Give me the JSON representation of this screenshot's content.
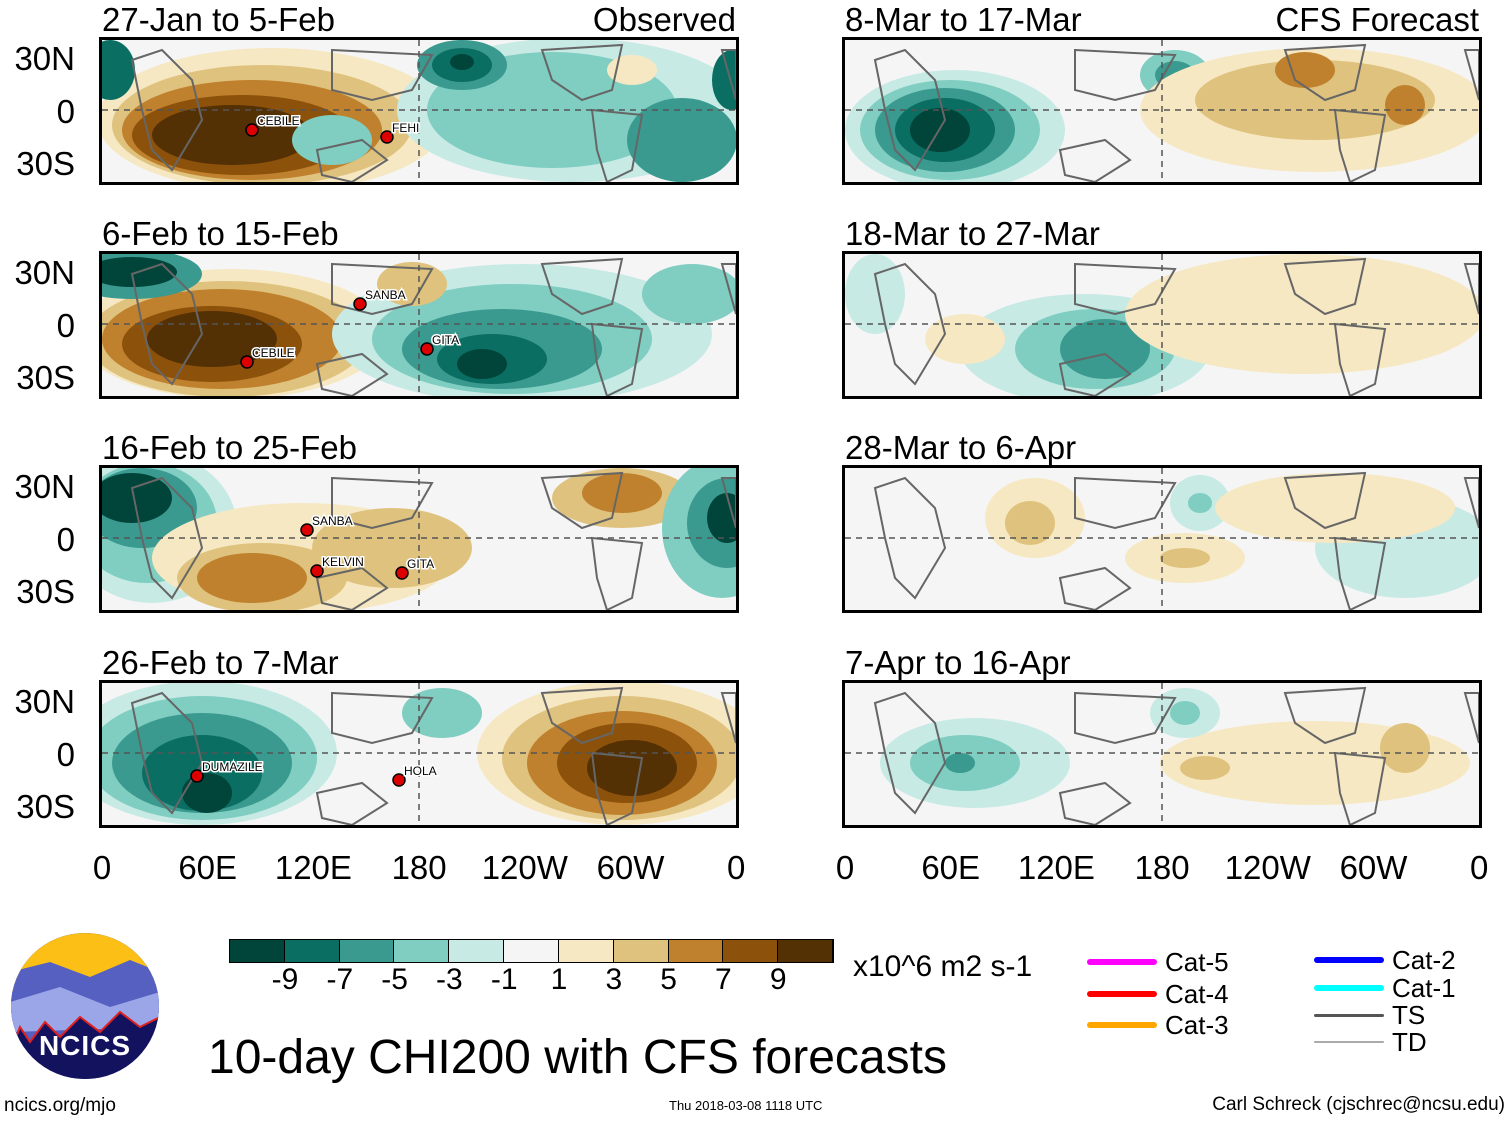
{
  "figure_title": "10-day CHI200 with CFS forecasts",
  "left_label": "Observed",
  "right_label": "CFS Forecast",
  "colors": [
    "#01443a",
    "#0a6e63",
    "#3a9a8f",
    "#80cdc1",
    "#c7eae5",
    "#f5f5f5",
    "#f6e8c3",
    "#dfc27d",
    "#bf812d",
    "#8c510a",
    "#543005"
  ],
  "chart_data": [
    {
      "type": "heatmap",
      "title": "27-Jan to 5-Feb",
      "group": "Observed",
      "storms": [
        "CEBILE",
        "FEHI"
      ]
    },
    {
      "type": "heatmap",
      "title": "6-Feb to 15-Feb",
      "group": "Observed",
      "storms": [
        "SANBA",
        "CEBILE",
        "GITA"
      ]
    },
    {
      "type": "heatmap",
      "title": "16-Feb to 25-Feb",
      "group": "Observed",
      "storms": [
        "SANBA",
        "KELVIN",
        "GITA"
      ]
    },
    {
      "type": "heatmap",
      "title": "26-Feb to 7-Mar",
      "group": "Observed",
      "storms": [
        "DUMAZILE",
        "HOLA"
      ]
    },
    {
      "type": "heatmap",
      "title": "8-Mar to 17-Mar",
      "group": "CFS Forecast",
      "storms": []
    },
    {
      "type": "heatmap",
      "title": "18-Mar to 27-Mar",
      "group": "CFS Forecast",
      "storms": []
    },
    {
      "type": "heatmap",
      "title": "28-Mar to 6-Apr",
      "group": "CFS Forecast",
      "storms": []
    },
    {
      "type": "heatmap",
      "title": "7-Apr to 16-Apr",
      "group": "CFS Forecast",
      "storms": []
    }
  ],
  "lat_ticks": [
    "30N",
    "0",
    "30S"
  ],
  "lon_ticks": [
    "0",
    "60E",
    "120E",
    "180",
    "120W",
    "60W",
    "0"
  ],
  "colorbar": {
    "ticks": [
      "-9",
      "-7",
      "-5",
      "-3",
      "-1",
      "1",
      "3",
      "5",
      "7",
      "9"
    ],
    "units": "x10^6 m2 s-1"
  },
  "track_legend": [
    {
      "label": "Cat-5",
      "color": "#ff00ff"
    },
    {
      "label": "Cat-4",
      "color": "#ff0000"
    },
    {
      "label": "Cat-3",
      "color": "#ffa500"
    },
    {
      "label": "Cat-2",
      "color": "#0000ff"
    },
    {
      "label": "Cat-1",
      "color": "#00ffff"
    },
    {
      "label": "TS",
      "color": "#555555"
    },
    {
      "label": "TD",
      "color": "#aaaaaa"
    }
  ],
  "logo_text": "NCICS",
  "footer": {
    "left": "ncics.org/mjo",
    "center": "Thu 2018-03-08 1118 UTC",
    "right": "Carl Schreck (cjschrec@ncsu.edu)"
  }
}
